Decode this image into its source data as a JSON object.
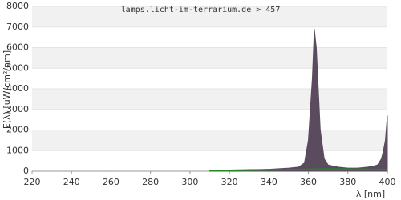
{
  "chart_data": {
    "type": "area",
    "title": "lamps.licht-im-terrarium.de > 457",
    "y_label": "E(λ) [uW/cm²/nm]",
    "x_label": "λ [nm]",
    "xlim": [
      220,
      400
    ],
    "xticks": [
      220,
      240,
      260,
      280,
      300,
      320,
      340,
      360,
      380,
      400
    ],
    "ylim": [
      0,
      8000
    ],
    "yticks": [
      0,
      1000,
      2000,
      3000,
      4000,
      5000,
      6000,
      7000,
      8000
    ],
    "grid": true,
    "series": [
      {
        "color": "#5b4b5e",
        "x": [
          310,
          320,
          330,
          340,
          345,
          350,
          355,
          358,
          360,
          362,
          363,
          364,
          365,
          366,
          368,
          370,
          375,
          380,
          385,
          390,
          393,
          395,
          397,
          398,
          399,
          400
        ],
        "values": [
          10,
          40,
          60,
          90,
          120,
          150,
          200,
          400,
          1500,
          4500,
          6900,
          6000,
          4000,
          2000,
          600,
          300,
          200,
          150,
          150,
          200,
          250,
          300,
          600,
          1000,
          1500,
          2700
        ]
      },
      {
        "color": "#1f8a1f",
        "x": [
          310,
          330,
          350,
          370,
          390,
          400
        ],
        "values": [
          20,
          60,
          80,
          100,
          90,
          80
        ]
      }
    ]
  }
}
